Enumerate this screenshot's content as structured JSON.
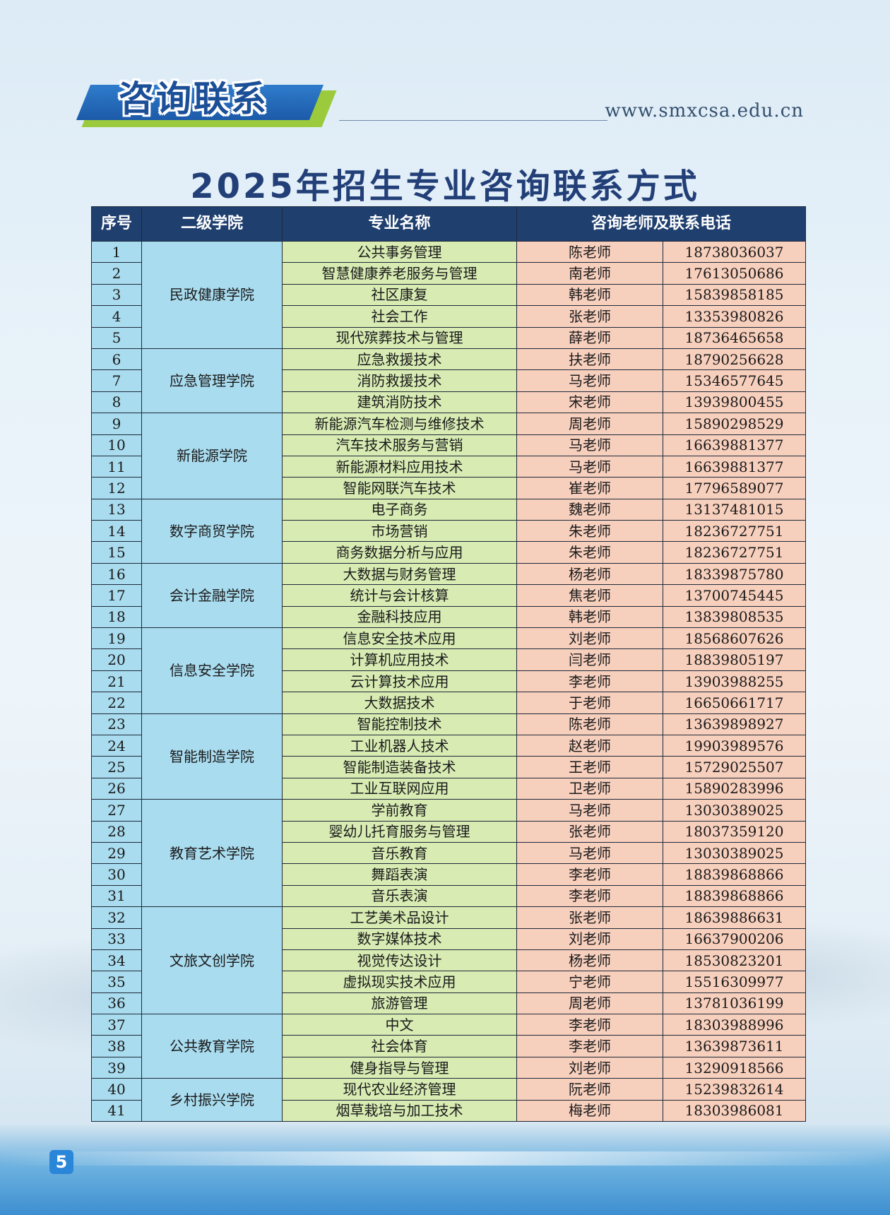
{
  "header": {
    "section_title": "咨询联系",
    "website": "www.smxcsa.edu.cn"
  },
  "main_title": "2025年招生专业咨询联系方式",
  "table": {
    "headers": [
      "序号",
      "二级学院",
      "专业名称",
      "咨询老师及联系电话"
    ],
    "colleges": [
      {
        "name": "民政健康学院",
        "rows": [
          {
            "no": "1",
            "major": "公共事务管理",
            "teacher": "陈老师",
            "phone": "18738036037"
          },
          {
            "no": "2",
            "major": "智慧健康养老服务与管理",
            "teacher": "南老师",
            "phone": "17613050686"
          },
          {
            "no": "3",
            "major": "社区康复",
            "teacher": "韩老师",
            "phone": "15839858185"
          },
          {
            "no": "4",
            "major": "社会工作",
            "teacher": "张老师",
            "phone": "13353980826"
          },
          {
            "no": "5",
            "major": "现代殡葬技术与管理",
            "teacher": "薛老师",
            "phone": "18736465658"
          }
        ]
      },
      {
        "name": "应急管理学院",
        "rows": [
          {
            "no": "6",
            "major": "应急救援技术",
            "teacher": "扶老师",
            "phone": "18790256628"
          },
          {
            "no": "7",
            "major": "消防救援技术",
            "teacher": "马老师",
            "phone": "15346577645"
          },
          {
            "no": "8",
            "major": "建筑消防技术",
            "teacher": "宋老师",
            "phone": "13939800455"
          }
        ]
      },
      {
        "name": "新能源学院",
        "rows": [
          {
            "no": "9",
            "major": "新能源汽车检测与维修技术",
            "teacher": "周老师",
            "phone": "15890298529"
          },
          {
            "no": "10",
            "major": "汽车技术服务与营销",
            "teacher": "马老师",
            "phone": "16639881377"
          },
          {
            "no": "11",
            "major": "新能源材料应用技术",
            "teacher": "马老师",
            "phone": "16639881377"
          },
          {
            "no": "12",
            "major": "智能网联汽车技术",
            "teacher": "崔老师",
            "phone": "17796589077"
          }
        ]
      },
      {
        "name": "数字商贸学院",
        "rows": [
          {
            "no": "13",
            "major": "电子商务",
            "teacher": "魏老师",
            "phone": "13137481015"
          },
          {
            "no": "14",
            "major": "市场营销",
            "teacher": "朱老师",
            "phone": "18236727751"
          },
          {
            "no": "15",
            "major": "商务数据分析与应用",
            "teacher": "朱老师",
            "phone": "18236727751"
          }
        ]
      },
      {
        "name": "会计金融学院",
        "rows": [
          {
            "no": "16",
            "major": "大数据与财务管理",
            "teacher": "杨老师",
            "phone": "18339875780"
          },
          {
            "no": "17",
            "major": "统计与会计核算",
            "teacher": "焦老师",
            "phone": "13700745445"
          },
          {
            "no": "18",
            "major": "金融科技应用",
            "teacher": "韩老师",
            "phone": "13839808535"
          }
        ]
      },
      {
        "name": "信息安全学院",
        "rows": [
          {
            "no": "19",
            "major": "信息安全技术应用",
            "teacher": "刘老师",
            "phone": "18568607626"
          },
          {
            "no": "20",
            "major": "计算机应用技术",
            "teacher": "闫老师",
            "phone": "18839805197"
          },
          {
            "no": "21",
            "major": "云计算技术应用",
            "teacher": "李老师",
            "phone": "13903988255"
          },
          {
            "no": "22",
            "major": "大数据技术",
            "teacher": "于老师",
            "phone": "16650661717"
          }
        ]
      },
      {
        "name": "智能制造学院",
        "rows": [
          {
            "no": "23",
            "major": "智能控制技术",
            "teacher": "陈老师",
            "phone": "13639898927"
          },
          {
            "no": "24",
            "major": "工业机器人技术",
            "teacher": "赵老师",
            "phone": "19903989576"
          },
          {
            "no": "25",
            "major": "智能制造装备技术",
            "teacher": "王老师",
            "phone": "15729025507"
          },
          {
            "no": "26",
            "major": "工业互联网应用",
            "teacher": "卫老师",
            "phone": "15890283996"
          }
        ]
      },
      {
        "name": "教育艺术学院",
        "rows": [
          {
            "no": "27",
            "major": "学前教育",
            "teacher": "马老师",
            "phone": "13030389025"
          },
          {
            "no": "28",
            "major": "婴幼儿托育服务与管理",
            "teacher": "张老师",
            "phone": "18037359120"
          },
          {
            "no": "29",
            "major": "音乐教育",
            "teacher": "马老师",
            "phone": "13030389025"
          },
          {
            "no": "30",
            "major": "舞蹈表演",
            "teacher": "李老师",
            "phone": "18839868866"
          },
          {
            "no": "31",
            "major": "音乐表演",
            "teacher": "李老师",
            "phone": "18839868866"
          }
        ]
      },
      {
        "name": "文旅文创学院",
        "rows": [
          {
            "no": "32",
            "major": "工艺美术品设计",
            "teacher": "张老师",
            "phone": "18639886631"
          },
          {
            "no": "33",
            "major": "数字媒体技术",
            "teacher": "刘老师",
            "phone": "16637900206"
          },
          {
            "no": "34",
            "major": "视觉传达设计",
            "teacher": "杨老师",
            "phone": "18530823201"
          },
          {
            "no": "35",
            "major": "虚拟现实技术应用",
            "teacher": "宁老师",
            "phone": "15516309977"
          },
          {
            "no": "36",
            "major": "旅游管理",
            "teacher": "周老师",
            "phone": "13781036199"
          }
        ]
      },
      {
        "name": "公共教育学院",
        "rows": [
          {
            "no": "37",
            "major": "中文",
            "teacher": "李老师",
            "phone": "18303988996"
          },
          {
            "no": "38",
            "major": "社会体育",
            "teacher": "李老师",
            "phone": "13639873611"
          },
          {
            "no": "39",
            "major": "健身指导与管理",
            "teacher": "刘老师",
            "phone": "13290918566"
          }
        ]
      },
      {
        "name": "乡村振兴学院",
        "rows": [
          {
            "no": "40",
            "major": "现代农业经济管理",
            "teacher": "阮老师",
            "phone": "15239832614"
          },
          {
            "no": "41",
            "major": "烟草栽培与加工技术",
            "teacher": "梅老师",
            "phone": "18303986081"
          }
        ]
      }
    ]
  },
  "footer": {
    "page_number": "5"
  }
}
